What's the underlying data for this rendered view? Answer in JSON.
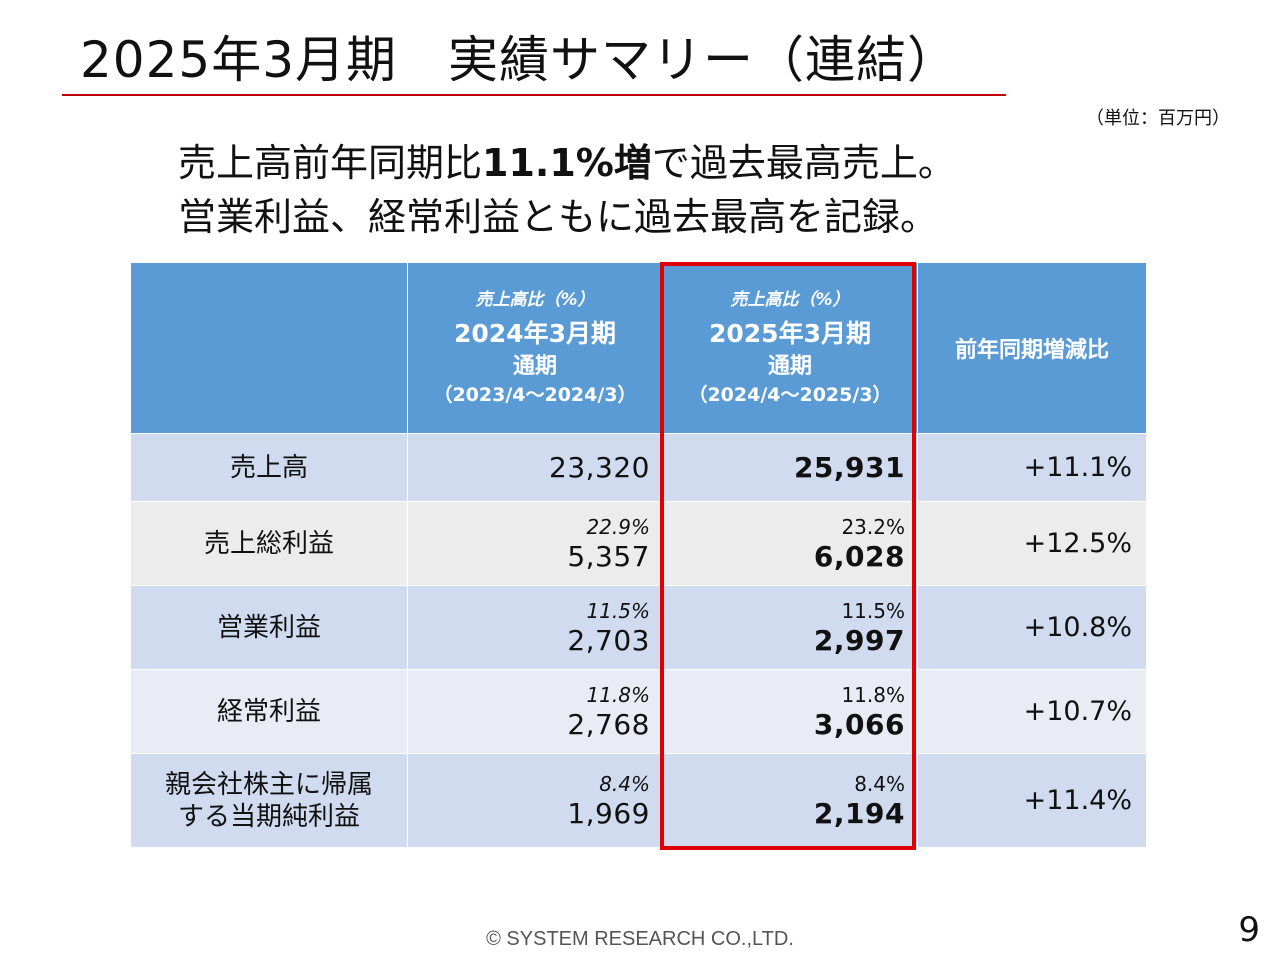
{
  "slide": {
    "title": "2025年3月期　実績サマリー（連結）",
    "unit_note": "（単位：百万円）",
    "headline": {
      "line1_pre": "売上高前年同期比",
      "line1_bold": "11.1%増",
      "line1_post": "で過去最高売上。",
      "line2": "営業利益、経常利益ともに過去最高を記録。"
    },
    "footer": "© SYSTEM RESEARCH CO.,LTD.",
    "page_number": "9"
  },
  "table": {
    "header": {
      "prev": {
        "ratio_label": "売上高比（%）",
        "year": "2024年3月期",
        "sub": "通期",
        "range": "（2023/4～2024/3）"
      },
      "curr": {
        "ratio_label": "売上高比（%）",
        "year": "2025年3月期",
        "sub": "通期",
        "range": "（2024/4～2025/3）"
      },
      "yoy": "前年同期増減比"
    },
    "rows": [
      {
        "label": "売上高",
        "prev_ratio": "",
        "prev_value": "23,320",
        "curr_ratio": "",
        "curr_value": "25,931",
        "yoy": "+11.1%"
      },
      {
        "label": "売上総利益",
        "prev_ratio": "22.9%",
        "prev_value": "5,357",
        "curr_ratio": "23.2%",
        "curr_value": "6,028",
        "yoy": "+12.5%"
      },
      {
        "label": "営業利益",
        "prev_ratio": "11.5%",
        "prev_value": "2,703",
        "curr_ratio": "11.5%",
        "curr_value": "2,997",
        "yoy": "+10.8%"
      },
      {
        "label": "経常利益",
        "prev_ratio": "11.8%",
        "prev_value": "2,768",
        "curr_ratio": "11.8%",
        "curr_value": "3,066",
        "yoy": "+10.7%"
      },
      {
        "label_line1": "親会社株主に帰属",
        "label_line2": "する当期純利益",
        "prev_ratio": "8.4%",
        "prev_value": "1,969",
        "curr_ratio": "8.4%",
        "curr_value": "2,194",
        "yoy": "+11.4%"
      }
    ]
  },
  "colors": {
    "header_blue": "#5b9bd5",
    "row_blue": "#d0dbef",
    "row_light": "#e9ecf5",
    "row_gray": "#ececec",
    "highlight_red": "#e00000",
    "title_rule": "#c00000"
  }
}
